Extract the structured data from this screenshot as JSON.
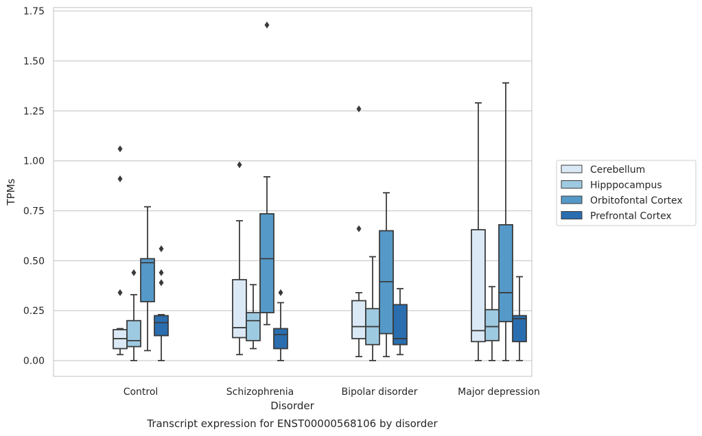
{
  "chart_data": {
    "type": "box",
    "title": "",
    "caption": "Transcript expression for ENST00000568106 by disorder",
    "xlabel": "Disorder",
    "ylabel": "TPMs",
    "ylim": [
      -0.08,
      1.76
    ],
    "yticks": [
      "0.00",
      "0.25",
      "0.50",
      "0.75",
      "1.00",
      "1.25",
      "1.50",
      "1.75"
    ],
    "grid": "horizontal",
    "legend_position": "right",
    "categories": [
      "Control",
      "Schizophrenia",
      "Bipolar disorder",
      "Major depression"
    ],
    "series": [
      {
        "name": "Cerebellum",
        "color": "#dbe9f6",
        "boxes": [
          {
            "whislo": 0.03,
            "q1": 0.06,
            "med": 0.11,
            "q3": 0.155,
            "whishi": 0.16,
            "fliers": [
              0.34,
              0.91,
              1.06
            ]
          },
          {
            "whislo": 0.03,
            "q1": 0.115,
            "med": 0.165,
            "q3": 0.405,
            "whishi": 0.7,
            "fliers": [
              0.98
            ]
          },
          {
            "whislo": 0.02,
            "q1": 0.11,
            "med": 0.17,
            "q3": 0.3,
            "whishi": 0.34,
            "fliers": [
              0.66,
              1.26
            ]
          },
          {
            "whislo": 0.0,
            "q1": 0.095,
            "med": 0.15,
            "q3": 0.655,
            "whishi": 1.29,
            "fliers": []
          }
        ]
      },
      {
        "name": "Hipppocampus",
        "color": "#9ecae1",
        "boxes": [
          {
            "whislo": 0.0,
            "q1": 0.07,
            "med": 0.1,
            "q3": 0.2,
            "whishi": 0.33,
            "fliers": [
              0.44
            ]
          },
          {
            "whislo": 0.06,
            "q1": 0.1,
            "med": 0.2,
            "q3": 0.24,
            "whishi": 0.38,
            "fliers": []
          },
          {
            "whislo": 0.0,
            "q1": 0.08,
            "med": 0.17,
            "q3": 0.26,
            "whishi": 0.52,
            "fliers": []
          },
          {
            "whislo": 0.0,
            "q1": 0.1,
            "med": 0.17,
            "q3": 0.255,
            "whishi": 0.37,
            "fliers": []
          }
        ]
      },
      {
        "name": "Orbitofontal Cortex",
        "color": "#5499c8",
        "boxes": [
          {
            "whislo": 0.05,
            "q1": 0.295,
            "med": 0.49,
            "q3": 0.51,
            "whishi": 0.77,
            "fliers": []
          },
          {
            "whislo": 0.18,
            "q1": 0.24,
            "med": 0.51,
            "q3": 0.735,
            "whishi": 0.92,
            "fliers": [
              1.68
            ]
          },
          {
            "whislo": 0.02,
            "q1": 0.135,
            "med": 0.395,
            "q3": 0.65,
            "whishi": 0.84,
            "fliers": []
          },
          {
            "whislo": 0.0,
            "q1": 0.195,
            "med": 0.34,
            "q3": 0.68,
            "whishi": 1.39,
            "fliers": []
          }
        ]
      },
      {
        "name": "Prefrontal Cortex",
        "color": "#2a6eb0",
        "boxes": [
          {
            "whislo": 0.0,
            "q1": 0.125,
            "med": 0.19,
            "q3": 0.225,
            "whishi": 0.23,
            "fliers": [
              0.39,
              0.44,
              0.56
            ]
          },
          {
            "whislo": 0.0,
            "q1": 0.06,
            "med": 0.13,
            "q3": 0.16,
            "whishi": 0.29,
            "fliers": [
              0.34
            ]
          },
          {
            "whislo": 0.03,
            "q1": 0.08,
            "med": 0.11,
            "q3": 0.28,
            "whishi": 0.36,
            "fliers": []
          },
          {
            "whislo": 0.0,
            "q1": 0.095,
            "med": 0.21,
            "q3": 0.225,
            "whishi": 0.42,
            "fliers": []
          }
        ]
      }
    ]
  }
}
